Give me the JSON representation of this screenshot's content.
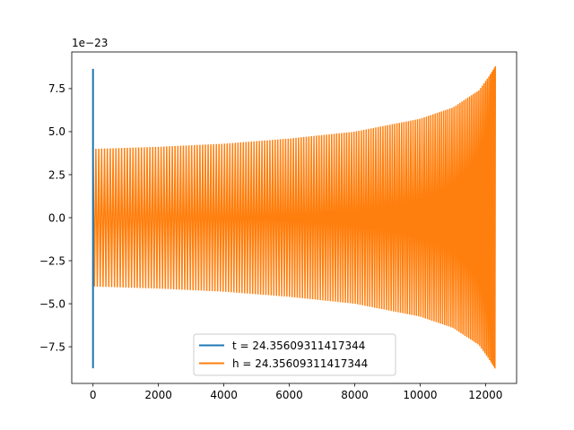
{
  "chart_data": {
    "type": "line",
    "title": "",
    "xlabel": "",
    "ylabel": "",
    "xlim": [
      -650,
      12950
    ],
    "ylim": [
      -9.63,
      9.63
    ],
    "y_offset_text": "1e−23",
    "x_ticks": [
      {
        "value": 0,
        "label": "0"
      },
      {
        "value": 2000,
        "label": "2000"
      },
      {
        "value": 4000,
        "label": "4000"
      },
      {
        "value": 6000,
        "label": "6000"
      },
      {
        "value": 8000,
        "label": "8000"
      },
      {
        "value": 10000,
        "label": "10000"
      },
      {
        "value": 12000,
        "label": "12000"
      }
    ],
    "y_ticks": [
      {
        "value": -7.5,
        "label": "−7.5"
      },
      {
        "value": -5.0,
        "label": "−5.0"
      },
      {
        "value": -2.5,
        "label": "−2.5"
      },
      {
        "value": 0.0,
        "label": "0.0"
      },
      {
        "value": 2.5,
        "label": "2.5"
      },
      {
        "value": 5.0,
        "label": "5.0"
      },
      {
        "value": 7.5,
        "label": "7.5"
      }
    ],
    "legend_position": "lower center",
    "series": [
      {
        "name": "t = 24.35609311417344",
        "color": "#1f77b4",
        "x_range": [
          0,
          1
        ],
        "y_min": -8.75,
        "y_max": 8.65,
        "description_points": [
          [
            0,
            8.65
          ],
          [
            0,
            -8.75
          ]
        ]
      },
      {
        "name": "h = 24.35609311417344",
        "color": "#ff7f0e",
        "x_range": [
          0,
          12300
        ],
        "y_min": -8.8,
        "y_max": 8.8,
        "envelope": [
          {
            "x": 0,
            "amp": 4.0
          },
          {
            "x": 2000,
            "amp": 4.12
          },
          {
            "x": 4000,
            "amp": 4.3
          },
          {
            "x": 6000,
            "amp": 4.6
          },
          {
            "x": 8000,
            "amp": 5.0
          },
          {
            "x": 10000,
            "amp": 5.75
          },
          {
            "x": 11000,
            "amp": 6.4
          },
          {
            "x": 11800,
            "amp": 7.4
          },
          {
            "x": 12100,
            "amp": 8.2
          },
          {
            "x": 12300,
            "amp": 8.8
          }
        ],
        "cycles": 165
      }
    ]
  }
}
